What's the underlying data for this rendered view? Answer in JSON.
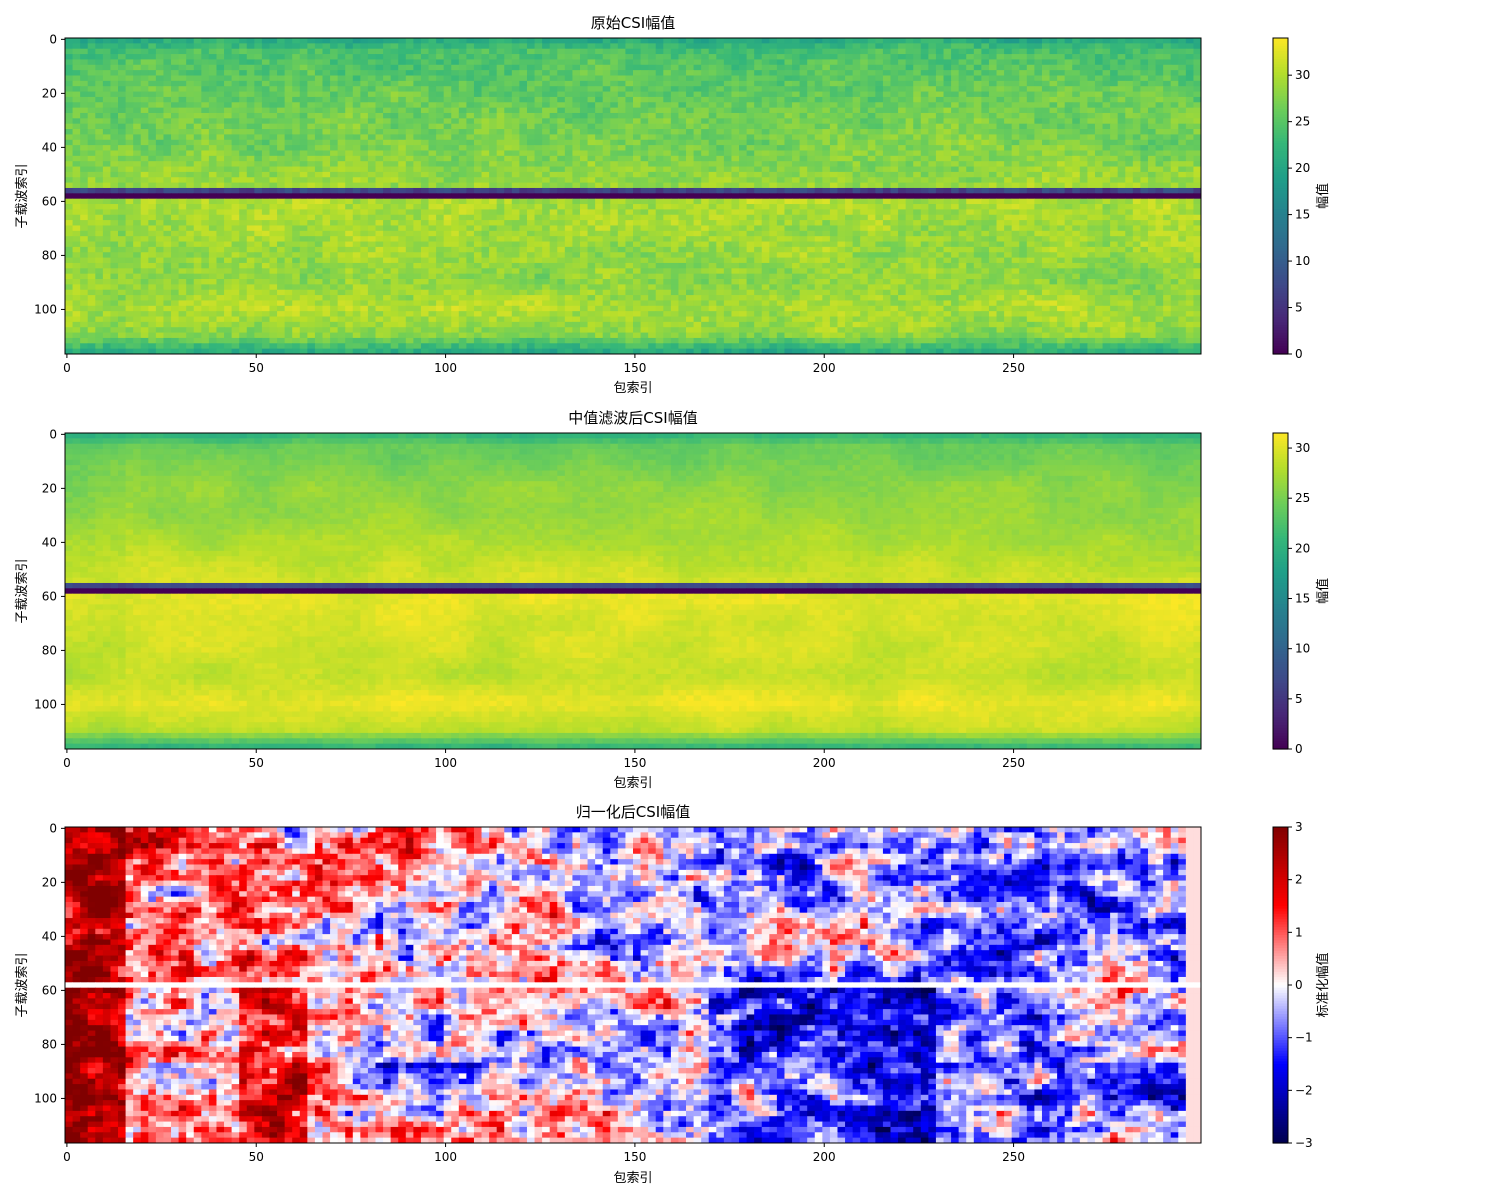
{
  "chart_data": [
    {
      "type": "heatmap",
      "title": "原始CSI幅值",
      "xlabel": "包索引",
      "ylabel": "子载波索引",
      "colorbar_label": "幅值",
      "colormap": "viridis",
      "xlim": [
        0,
        299
      ],
      "ylim": [
        0,
        116
      ],
      "clim": [
        0,
        34
      ],
      "x_ticks": [
        0,
        50,
        100,
        150,
        200,
        250
      ],
      "y_ticks": [
        0,
        20,
        40,
        60,
        80,
        100
      ],
      "colorbar_ticks": [
        0,
        5,
        10,
        15,
        20,
        25,
        30
      ],
      "profile": {
        "subcarrier_index": [
          0,
          5,
          20,
          40,
          55,
          57,
          58,
          60,
          75,
          90,
          100,
          110,
          116
        ],
        "amplitude": [
          20,
          24,
          26,
          27,
          29,
          0,
          0,
          30,
          29,
          28,
          30,
          28,
          21
        ]
      },
      "null_band": [
        57,
        59
      ]
    },
    {
      "type": "heatmap",
      "title": "中值滤波后CSI幅值",
      "xlabel": "包索引",
      "ylabel": "子载波索引",
      "colorbar_label": "幅值",
      "colormap": "viridis",
      "xlim": [
        0,
        299
      ],
      "ylim": [
        0,
        116
      ],
      "clim": [
        0,
        31.5
      ],
      "x_ticks": [
        0,
        50,
        100,
        150,
        200,
        250
      ],
      "y_ticks": [
        0,
        20,
        40,
        60,
        80,
        100
      ],
      "colorbar_ticks": [
        0,
        5,
        10,
        15,
        20,
        25,
        30
      ],
      "profile": {
        "subcarrier_index": [
          0,
          5,
          20,
          40,
          55,
          57,
          58,
          60,
          75,
          90,
          100,
          110,
          116
        ],
        "amplitude": [
          20,
          24,
          26,
          27.5,
          29.5,
          0,
          0,
          30.5,
          29.5,
          28.5,
          30.5,
          28.5,
          21
        ]
      },
      "null_band": [
        57,
        59
      ]
    },
    {
      "type": "heatmap",
      "title": "归一化后CSI幅值",
      "xlabel": "包索引",
      "ylabel": "子载波索引",
      "colorbar_label": "标准化幅值",
      "colormap": "seismic",
      "xlim": [
        0,
        299
      ],
      "ylim": [
        0,
        116
      ],
      "clim": [
        -3,
        3
      ],
      "x_ticks": [
        0,
        50,
        100,
        150,
        200,
        250
      ],
      "y_ticks": [
        0,
        20,
        40,
        60,
        80,
        100
      ],
      "colorbar_ticks": [
        -3,
        -2,
        -1,
        0,
        1,
        2,
        3
      ],
      "colorbar_tick_labels": [
        "−3",
        "−2",
        "−1",
        "0",
        "1",
        "2",
        "3"
      ],
      "null_band": [
        57,
        59
      ]
    }
  ]
}
